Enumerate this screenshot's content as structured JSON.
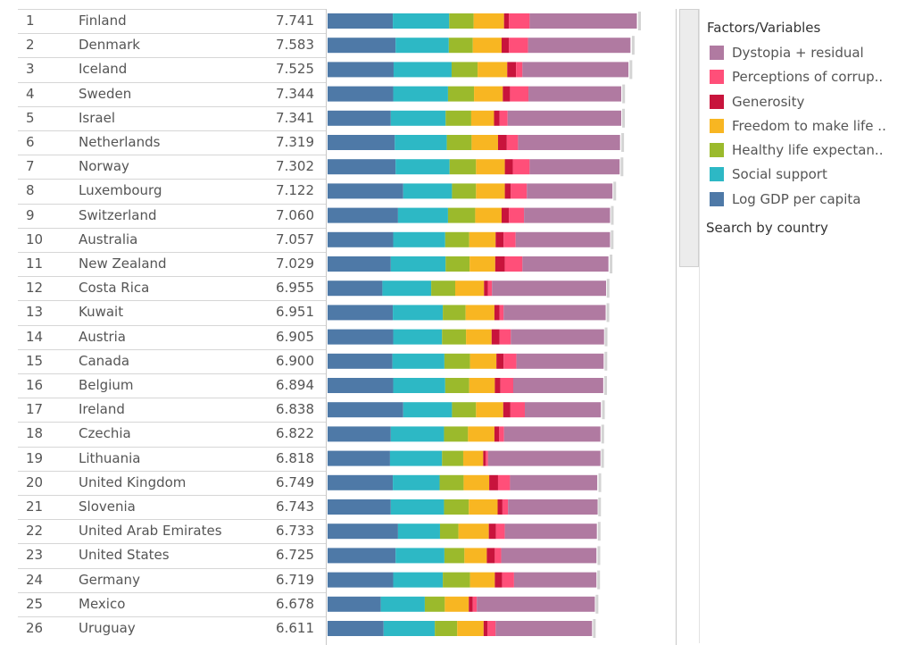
{
  "legend": {
    "title": "Factors/Variables",
    "items": [
      {
        "label": "Dystopia + residual",
        "color": "#b07aa1"
      },
      {
        "label": "Perceptions of corrup..",
        "color": "#ff4f79"
      },
      {
        "label": "Generosity",
        "color": "#c8143c"
      },
      {
        "label": "Freedom to make life ..",
        "color": "#f8b622"
      },
      {
        "label": "Healthy life expectan..",
        "color": "#9bba2c"
      },
      {
        "label": "Social support",
        "color": "#2db8c5"
      },
      {
        "label": "Log GDP per capita",
        "color": "#4e79a7"
      }
    ]
  },
  "search_label": "Search by country",
  "chart_data": {
    "type": "bar",
    "orientation": "horizontal",
    "stacked": true,
    "title": "",
    "xlabel": "",
    "ylabel": "",
    "xlim": [
      0,
      8.7
    ],
    "factor_order": [
      "Log GDP per capita",
      "Social support",
      "Healthy life expectan..",
      "Freedom to make life ..",
      "Generosity",
      "Perceptions of corrup..",
      "Dystopia + residual"
    ],
    "rows": [
      {
        "rank": "1",
        "country": "Finland",
        "score": "7.741",
        "value": 7.741,
        "segments": [
          1.63,
          1.41,
          0.61,
          0.76,
          0.12,
          0.52,
          2.68
        ]
      },
      {
        "rank": "2",
        "country": "Denmark",
        "score": "7.583",
        "value": 7.583,
        "segments": [
          1.7,
          1.33,
          0.6,
          0.72,
          0.18,
          0.48,
          2.56
        ]
      },
      {
        "rank": "3",
        "country": "Iceland",
        "score": "7.525",
        "value": 7.525,
        "segments": [
          1.65,
          1.45,
          0.65,
          0.74,
          0.22,
          0.16,
          2.65
        ]
      },
      {
        "rank": "4",
        "country": "Sweden",
        "score": "7.344",
        "value": 7.344,
        "segments": [
          1.64,
          1.37,
          0.65,
          0.72,
          0.18,
          0.46,
          2.32
        ]
      },
      {
        "rank": "5",
        "country": "Israel",
        "score": "7.341",
        "value": 7.341,
        "segments": [
          1.58,
          1.37,
          0.64,
          0.57,
          0.14,
          0.2,
          2.84
        ]
      },
      {
        "rank": "6",
        "country": "Netherlands",
        "score": "7.319",
        "value": 7.319,
        "segments": [
          1.68,
          1.3,
          0.62,
          0.66,
          0.22,
          0.28,
          2.55
        ]
      },
      {
        "rank": "7",
        "country": "Norway",
        "score": "7.302",
        "value": 7.302,
        "segments": [
          1.7,
          1.35,
          0.66,
          0.72,
          0.2,
          0.42,
          2.25
        ]
      },
      {
        "rank": "8",
        "country": "Luxembourg",
        "score": "7.122",
        "value": 7.122,
        "segments": [
          1.89,
          1.22,
          0.6,
          0.72,
          0.15,
          0.4,
          2.14
        ]
      },
      {
        "rank": "9",
        "country": "Switzerland",
        "score": "7.060",
        "value": 7.06,
        "segments": [
          1.76,
          1.25,
          0.68,
          0.66,
          0.18,
          0.38,
          2.15
        ]
      },
      {
        "rank": "10",
        "country": "Australia",
        "score": "7.057",
        "value": 7.057,
        "segments": [
          1.64,
          1.3,
          0.6,
          0.66,
          0.2,
          0.3,
          2.36
        ]
      },
      {
        "rank": "11",
        "country": "New Zealand",
        "score": "7.029",
        "value": 7.029,
        "segments": [
          1.58,
          1.37,
          0.6,
          0.64,
          0.24,
          0.44,
          2.15
        ]
      },
      {
        "rank": "12",
        "country": "Costa Rica",
        "score": "6.955",
        "value": 6.955,
        "segments": [
          1.37,
          1.22,
          0.6,
          0.72,
          0.1,
          0.1,
          2.85
        ]
      },
      {
        "rank": "13",
        "country": "Kuwait",
        "score": "6.951",
        "value": 6.951,
        "segments": [
          1.63,
          1.25,
          0.57,
          0.72,
          0.13,
          0.1,
          2.55
        ]
      },
      {
        "rank": "14",
        "country": "Austria",
        "score": "6.905",
        "value": 6.905,
        "segments": [
          1.64,
          1.22,
          0.6,
          0.64,
          0.2,
          0.28,
          2.33
        ]
      },
      {
        "rank": "15",
        "country": "Canada",
        "score": "6.900",
        "value": 6.9,
        "segments": [
          1.62,
          1.3,
          0.64,
          0.66,
          0.18,
          0.32,
          2.18
        ]
      },
      {
        "rank": "16",
        "country": "Belgium",
        "score": "6.894",
        "value": 6.894,
        "segments": [
          1.64,
          1.3,
          0.6,
          0.64,
          0.14,
          0.32,
          2.25
        ]
      },
      {
        "rank": "17",
        "country": "Ireland",
        "score": "6.838",
        "value": 6.838,
        "segments": [
          1.89,
          1.22,
          0.6,
          0.68,
          0.18,
          0.36,
          1.9
        ]
      },
      {
        "rank": "18",
        "country": "Czechia",
        "score": "6.822",
        "value": 6.822,
        "segments": [
          1.58,
          1.33,
          0.6,
          0.66,
          0.12,
          0.12,
          2.41
        ]
      },
      {
        "rank": "19",
        "country": "Lithuania",
        "score": "6.818",
        "value": 6.818,
        "segments": [
          1.56,
          1.3,
          0.53,
          0.5,
          0.06,
          0.06,
          2.81
        ]
      },
      {
        "rank": "20",
        "country": "United Kingdom",
        "score": "6.749",
        "value": 6.749,
        "segments": [
          1.63,
          1.17,
          0.6,
          0.64,
          0.22,
          0.3,
          2.18
        ]
      },
      {
        "rank": "21",
        "country": "Slovenia",
        "score": "6.743",
        "value": 6.743,
        "segments": [
          1.58,
          1.33,
          0.62,
          0.72,
          0.12,
          0.14,
          2.24
        ]
      },
      {
        "rank": "22",
        "country": "United Arab Emirates",
        "score": "6.733",
        "value": 6.733,
        "segments": [
          1.76,
          1.05,
          0.46,
          0.76,
          0.18,
          0.22,
          2.3
        ]
      },
      {
        "rank": "23",
        "country": "United States",
        "score": "6.725",
        "value": 6.725,
        "segments": [
          1.7,
          1.22,
          0.5,
          0.56,
          0.2,
          0.16,
          2.38
        ]
      },
      {
        "rank": "24",
        "country": "Germany",
        "score": "6.719",
        "value": 6.719,
        "segments": [
          1.64,
          1.24,
          0.68,
          0.62,
          0.18,
          0.3,
          2.06
        ]
      },
      {
        "rank": "25",
        "country": "Mexico",
        "score": "6.678",
        "value": 6.678,
        "segments": [
          1.33,
          1.1,
          0.5,
          0.6,
          0.1,
          0.1,
          2.95
        ]
      },
      {
        "rank": "26",
        "country": "Uruguay",
        "score": "6.611",
        "value": 6.611,
        "segments": [
          1.4,
          1.28,
          0.56,
          0.66,
          0.1,
          0.2,
          2.41
        ]
      }
    ]
  }
}
